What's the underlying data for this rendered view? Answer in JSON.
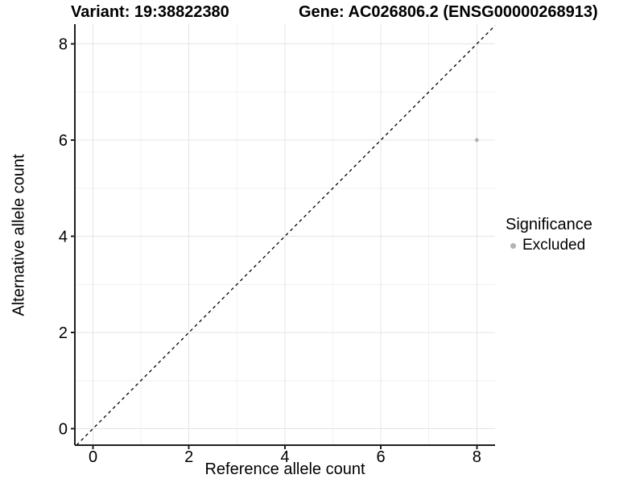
{
  "figure": {
    "background": "#FFFFFF",
    "variant_title": "Variant: 19:38822380",
    "gene_title": "Gene: AC026806.2 (ENSG00000268913)"
  },
  "legend": {
    "title": "Significance",
    "items": [
      {
        "label": "Excluded",
        "color": "#B3B3B3",
        "marker": "circle"
      }
    ]
  },
  "chart_data": {
    "type": "scatter",
    "xlabel": "Reference allele count",
    "ylabel": "Alternative allele count",
    "xlim": [
      -0.4,
      8.4
    ],
    "ylim": [
      -0.4,
      8.4
    ],
    "x_ticks": [
      0,
      2,
      4,
      6,
      8
    ],
    "y_ticks": [
      0,
      2,
      4,
      6,
      8
    ],
    "minor_ticks": [
      1,
      3,
      5,
      7
    ],
    "grid": {
      "show_minor": true,
      "major_color": "#E4E4E4",
      "minor_color": "#F2F2F2"
    },
    "axis_color": "#1F1F1F",
    "tick_label_color": "#000000",
    "legend_position": "right",
    "reference_line": {
      "kind": "identity",
      "style": "dashed",
      "color": "#000000"
    },
    "series": [
      {
        "name": "Excluded",
        "color": "#B3B3B3",
        "marker_radius": 2.4,
        "points": [
          {
            "x": 8,
            "y": 6
          }
        ]
      }
    ]
  }
}
